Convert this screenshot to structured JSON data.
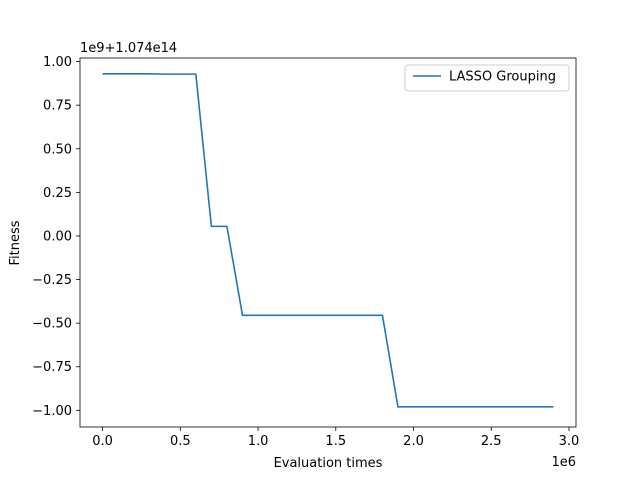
{
  "chart_data": {
    "type": "line",
    "title": "",
    "xlabel": "Evaluation times",
    "ylabel": "Fitness",
    "x_offset_text": "1e6",
    "y_offset_text": "1e9+1.074e14",
    "xlim": [
      -0.145,
      3.045
    ],
    "ylim": [
      -1.0955,
      1.0205
    ],
    "x_ticks": [
      0.0,
      0.5,
      1.0,
      1.5,
      2.0,
      2.5,
      3.0
    ],
    "x_tick_labels": [
      "0.0",
      "0.5",
      "1.0",
      "1.5",
      "2.0",
      "2.5",
      "3.0"
    ],
    "y_ticks": [
      1.0,
      0.75,
      0.5,
      0.25,
      0.0,
      -0.25,
      -0.5,
      -0.75,
      -1.0
    ],
    "y_tick_labels": [
      "1.00",
      "0.75",
      "0.50",
      "0.25",
      "0.00",
      "−0.25",
      "−0.50",
      "−0.75",
      "−1.00"
    ],
    "grid": false,
    "legend_position": "top-right",
    "series": [
      {
        "name": "LASSO Grouping",
        "color": "#1f77b4",
        "x": [
          0.0,
          0.1,
          0.2,
          0.3,
          0.4,
          0.5,
          0.6,
          0.7,
          0.8,
          0.9,
          1.0,
          1.1,
          1.2,
          1.3,
          1.4,
          1.5,
          1.6,
          1.7,
          1.8,
          1.9,
          2.0,
          2.1,
          2.2,
          2.3,
          2.4,
          2.5,
          2.6,
          2.7,
          2.8,
          2.9
        ],
        "y": [
          0.93,
          0.93,
          0.93,
          0.93,
          0.928,
          0.928,
          0.928,
          0.055,
          0.055,
          -0.455,
          -0.455,
          -0.455,
          -0.455,
          -0.455,
          -0.455,
          -0.455,
          -0.455,
          -0.455,
          -0.455,
          -0.98,
          -0.98,
          -0.98,
          -0.98,
          -0.98,
          -0.98,
          -0.98,
          -0.98,
          -0.98,
          -0.98,
          -0.98
        ]
      }
    ]
  }
}
